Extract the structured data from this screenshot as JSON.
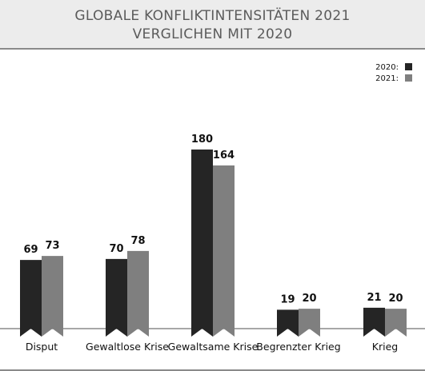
{
  "title": {
    "line1": "GLOBALE KONFLIKTINTENSITÄTEN 2021",
    "line2": "VERGLICHEN MIT 2020"
  },
  "colors": {
    "series_2020": "#252525",
    "series_2021": "#7f7f7f",
    "title_text": "#5b5b5b",
    "title_bg": "#ececec",
    "baseline": "#8a8a8a"
  },
  "chart_data": {
    "type": "bar",
    "title": "GLOBALE KONFLIKTINTENSITÄTEN 2021 VERGLICHEN MIT 2020",
    "xlabel": "",
    "ylabel": "",
    "categories": [
      "Disput",
      "Gewaltlose Krise",
      "Gewaltsame Krise",
      "Begrenzter Krieg",
      "Krieg"
    ],
    "series": [
      {
        "name": "2020:",
        "values": [
          69,
          70,
          180,
          19,
          21
        ]
      },
      {
        "name": "2021:",
        "values": [
          73,
          78,
          164,
          20,
          20
        ]
      }
    ],
    "ylim": [
      0,
      180
    ],
    "grid": false,
    "legend": "top-right"
  }
}
